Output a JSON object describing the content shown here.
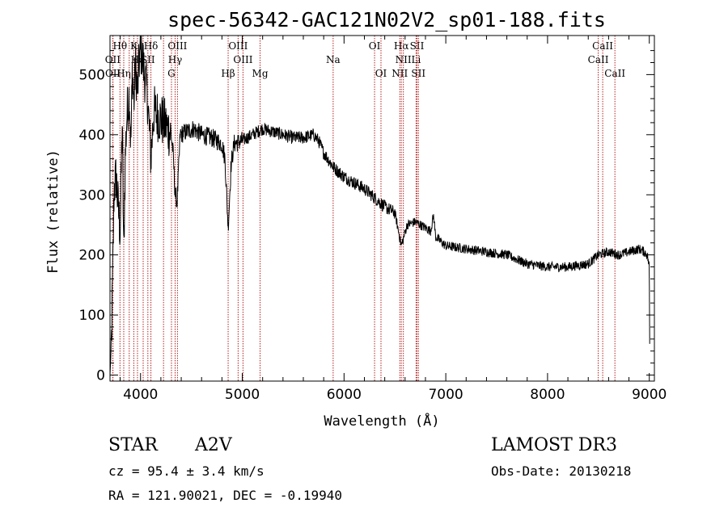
{
  "chart_data": {
    "type": "line",
    "title": "spec-56342-GAC121N02V2_sp01-188.fits",
    "xlabel": "Wavelength (Å)",
    "ylabel": "Flux (relative)",
    "xlim": [
      3700,
      9050
    ],
    "ylim": [
      -10,
      565
    ],
    "xticks": [
      4000,
      5000,
      6000,
      7000,
      8000,
      9000
    ],
    "yticks": [
      0,
      100,
      200,
      300,
      400,
      500
    ],
    "line_color": "#000000",
    "marker_color": "#b22222",
    "spectrum_anchors": [
      [
        3700,
        0
      ],
      [
        3705,
        20
      ],
      [
        3715,
        60
      ],
      [
        3725,
        150
      ],
      [
        3740,
        310
      ],
      [
        3760,
        330
      ],
      [
        3780,
        280
      ],
      [
        3800,
        240
      ],
      [
        3820,
        420
      ],
      [
        3835,
        200
      ],
      [
        3850,
        360
      ],
      [
        3865,
        430
      ],
      [
        3890,
        470
      ],
      [
        3905,
        380
      ],
      [
        3920,
        510
      ],
      [
        3935,
        450
      ],
      [
        3950,
        520
      ],
      [
        3970,
        470
      ],
      [
        3990,
        530
      ],
      [
        4010,
        540
      ],
      [
        4040,
        500
      ],
      [
        4070,
        460
      ],
      [
        4102,
        360
      ],
      [
        4130,
        440
      ],
      [
        4180,
        430
      ],
      [
        4230,
        420
      ],
      [
        4270,
        410
      ],
      [
        4300,
        400
      ],
      [
        4320,
        370
      ],
      [
        4340,
        300
      ],
      [
        4360,
        290
      ],
      [
        4390,
        400
      ],
      [
        4450,
        405
      ],
      [
        4520,
        410
      ],
      [
        4600,
        400
      ],
      [
        4700,
        395
      ],
      [
        4800,
        385
      ],
      [
        4830,
        360
      ],
      [
        4861,
        245
      ],
      [
        4890,
        350
      ],
      [
        4920,
        385
      ],
      [
        5000,
        390
      ],
      [
        5100,
        400
      ],
      [
        5200,
        410
      ],
      [
        5300,
        405
      ],
      [
        5400,
        400
      ],
      [
        5500,
        395
      ],
      [
        5600,
        395
      ],
      [
        5700,
        400
      ],
      [
        5750,
        390
      ],
      [
        5800,
        370
      ],
      [
        5900,
        345
      ],
      [
        6000,
        330
      ],
      [
        6100,
        320
      ],
      [
        6200,
        310
      ],
      [
        6300,
        295
      ],
      [
        6400,
        280
      ],
      [
        6500,
        270
      ],
      [
        6563,
        215
      ],
      [
        6620,
        250
      ],
      [
        6700,
        255
      ],
      [
        6800,
        245
      ],
      [
        6850,
        240
      ],
      [
        6880,
        265
      ],
      [
        6900,
        230
      ],
      [
        7000,
        215
      ],
      [
        7200,
        210
      ],
      [
        7400,
        205
      ],
      [
        7600,
        200
      ],
      [
        7800,
        185
      ],
      [
        8000,
        180
      ],
      [
        8200,
        180
      ],
      [
        8400,
        185
      ],
      [
        8500,
        200
      ],
      [
        8600,
        205
      ],
      [
        8700,
        200
      ],
      [
        8800,
        205
      ],
      [
        8900,
        210
      ],
      [
        8950,
        205
      ],
      [
        8980,
        200
      ],
      [
        9000,
        180
      ],
      [
        9005,
        20
      ]
    ],
    "spectral_lines": [
      {
        "label": "Hθ",
        "wavelength": 3798,
        "row": 0
      },
      {
        "label": "K",
        "wavelength": 3934,
        "row": 0
      },
      {
        "label": "Hδ",
        "wavelength": 4102,
        "row": 0
      },
      {
        "label": "OIII",
        "wavelength": 4363,
        "row": 0
      },
      {
        "label": "OIII",
        "wavelength": 4959,
        "row": 0
      },
      {
        "label": "OI",
        "wavelength": 6300,
        "row": 0
      },
      {
        "label": "Hα",
        "wavelength": 6563,
        "row": 0
      },
      {
        "label": "SII",
        "wavelength": 6717,
        "row": 0
      },
      {
        "label": "CaII",
        "wavelength": 8542,
        "row": 0
      },
      {
        "label": "OII",
        "wavelength": 3727,
        "row": 1
      },
      {
        "label": "Hε",
        "wavelength": 3970,
        "row": 1
      },
      {
        "label": "SII",
        "wavelength": 4072,
        "row": 1
      },
      {
        "label": "Hγ",
        "wavelength": 4340,
        "row": 1
      },
      {
        "label": "OIII",
        "wavelength": 5007,
        "row": 1
      },
      {
        "label": "Na",
        "wavelength": 5893,
        "row": 1
      },
      {
        "label": "NII",
        "wavelength": 6583,
        "row": 1
      },
      {
        "label": "Li",
        "wavelength": 6708,
        "row": 1
      },
      {
        "label": "CaII",
        "wavelength": 8498,
        "row": 1
      },
      {
        "label": "OII",
        "wavelength": 3729,
        "row": 2
      },
      {
        "label": "Hη",
        "wavelength": 3835,
        "row": 2
      },
      {
        "label": "G",
        "wavelength": 4304,
        "row": 2
      },
      {
        "label": "Hβ",
        "wavelength": 4861,
        "row": 2
      },
      {
        "label": "Mg",
        "wavelength": 5175,
        "row": 2
      },
      {
        "label": "OI",
        "wavelength": 6363,
        "row": 2
      },
      {
        "label": "NII",
        "wavelength": 6548,
        "row": 2
      },
      {
        "label": "SII",
        "wavelength": 6731,
        "row": 2
      },
      {
        "label": "CaII",
        "wavelength": 8662,
        "row": 2
      },
      {
        "label": "",
        "wavelength": 3889,
        "row": 3
      },
      {
        "label": "",
        "wavelength": 4026,
        "row": 3
      },
      {
        "label": "",
        "wavelength": 4226,
        "row": 3
      }
    ]
  },
  "info": {
    "object_class": "STAR",
    "subclass": "A2V",
    "redshift": "cz = 95.4 ± 3.4 km/s",
    "coords": "RA = 121.90021, DEC =  -0.19940",
    "survey": "LAMOST DR3",
    "obs_date": "Obs-Date: 20130218"
  }
}
